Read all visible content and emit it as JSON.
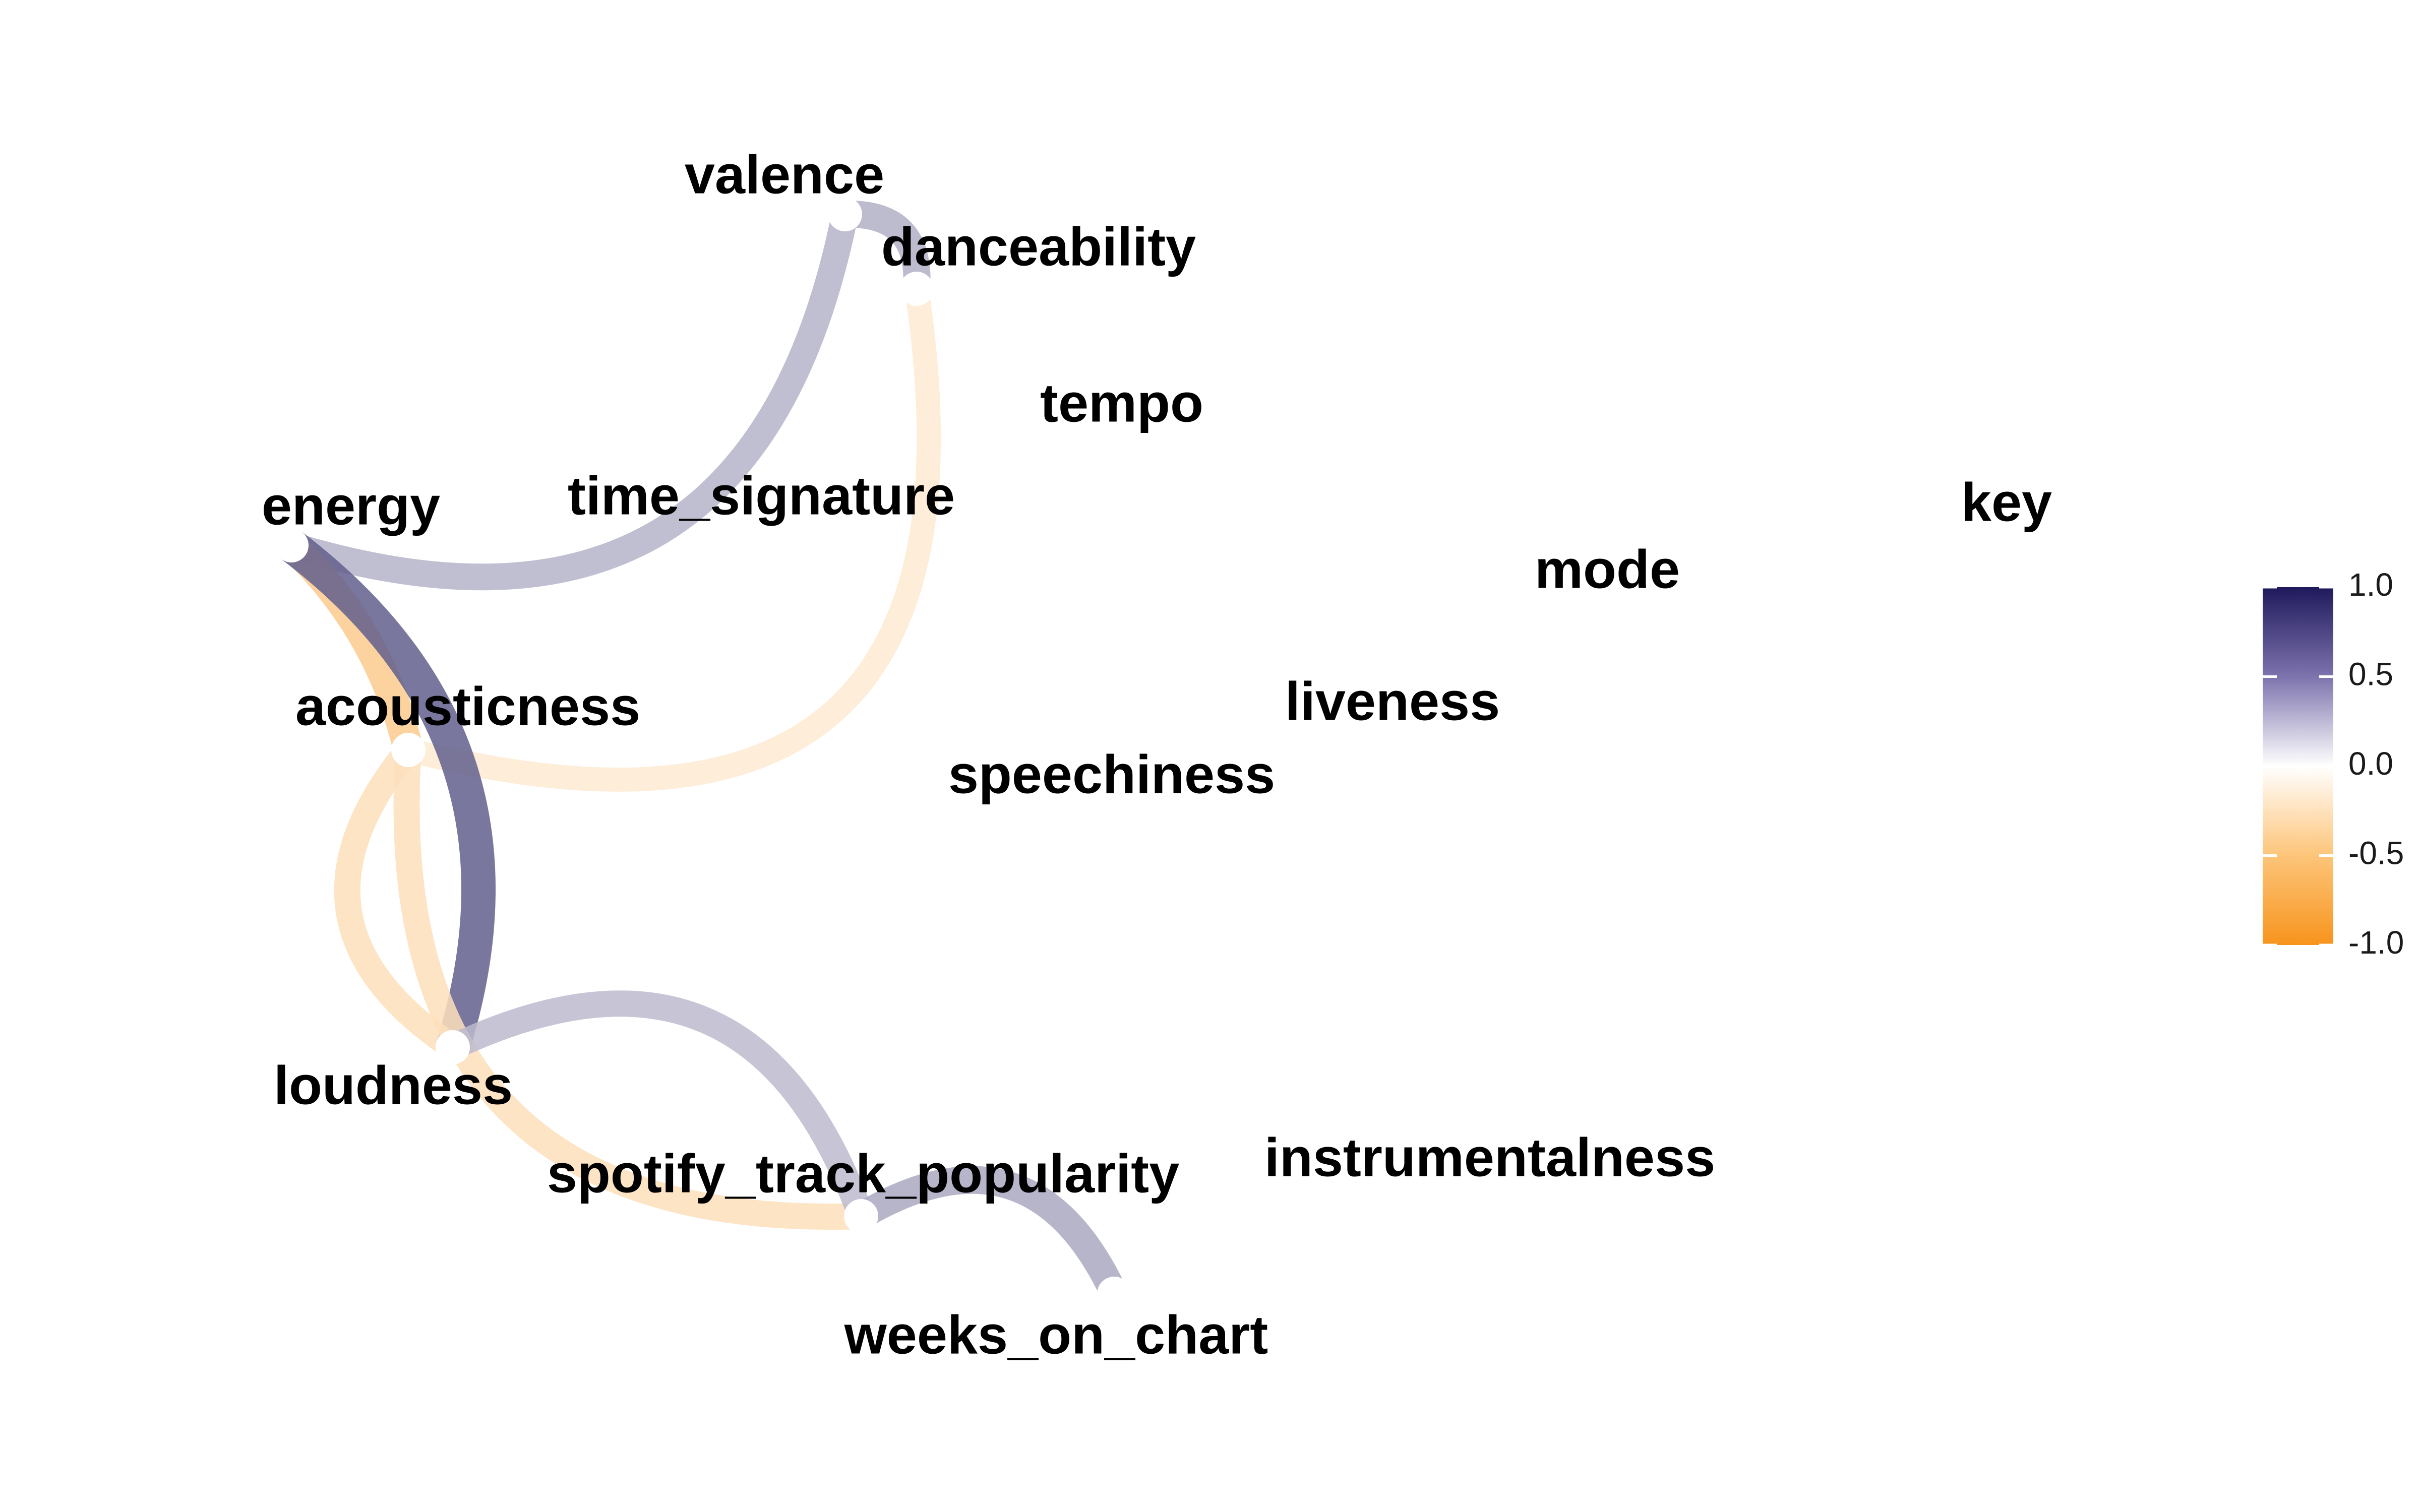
{
  "chart_data": {
    "type": "network",
    "nodes": [
      "valence",
      "danceability",
      "tempo",
      "time_signature",
      "energy",
      "key",
      "mode",
      "acousticness",
      "liveness",
      "speechiness",
      "loudness",
      "spotify_track_popularity",
      "instrumentalness",
      "weeks_on_chart"
    ],
    "edges": [
      {
        "from": "energy",
        "to": "valence",
        "correlation": 0.33
      },
      {
        "from": "valence",
        "to": "danceability",
        "correlation": 0.35
      },
      {
        "from": "danceability",
        "to": "acousticness",
        "correlation": -0.2
      },
      {
        "from": "energy",
        "to": "acousticness",
        "correlation": -0.5
      },
      {
        "from": "energy",
        "to": "loudness",
        "correlation": 0.7
      },
      {
        "from": "acousticness",
        "to": "loudness",
        "correlation": -0.3
      },
      {
        "from": "acousticness",
        "to": "spotify_track_popularity",
        "correlation": -0.3
      },
      {
        "from": "loudness",
        "to": "spotify_track_popularity",
        "correlation": 0.3
      },
      {
        "from": "spotify_track_popularity",
        "to": "weeks_on_chart",
        "correlation": 0.38
      }
    ],
    "legend": {
      "ticks": [
        "1.0",
        "0.5",
        "0.0",
        "-0.5",
        "-1.0"
      ],
      "range": [
        -1,
        1
      ],
      "placement": "right",
      "colors": {
        "high": "#1f1a5c",
        "mid": "#ffffff",
        "low": "#f7941d"
      }
    }
  }
}
